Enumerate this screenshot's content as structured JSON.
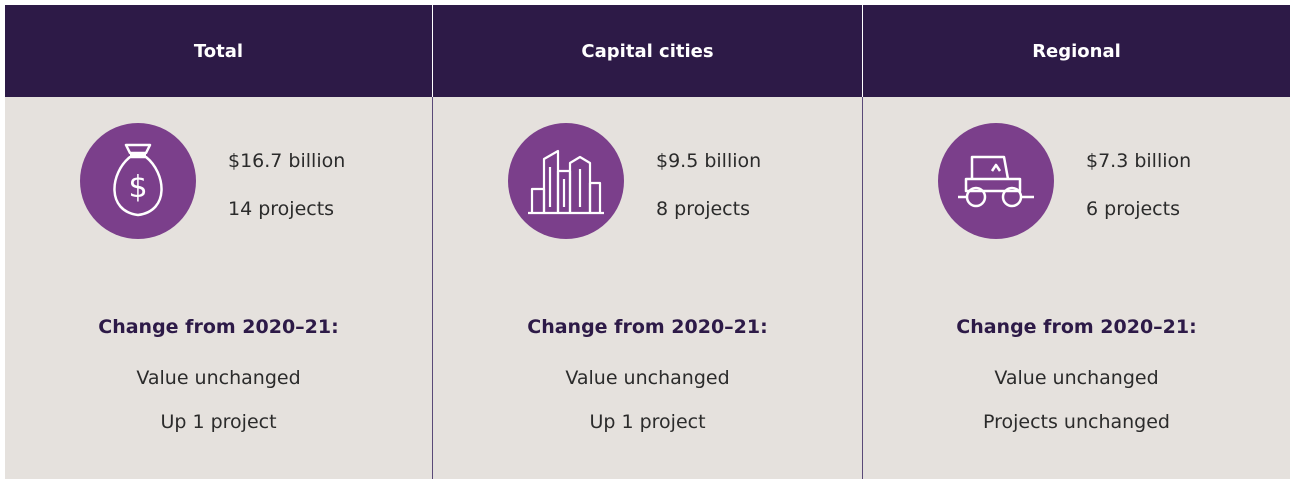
{
  "columns": [
    {
      "header": "Total",
      "value": "$16.7 billion",
      "projects": "14 projects",
      "change_label": "Change from 2020–21:",
      "change_value": "Value unchanged",
      "change_projects": "Up 1 project"
    },
    {
      "header": "Capital cities",
      "value": "$9.5 billion",
      "projects": "8 projects",
      "change_label": "Change from 2020–21:",
      "change_value": "Value unchanged",
      "change_projects": "Up 1 project"
    },
    {
      "header": "Regional",
      "value": "$7.3 billion",
      "projects": "6 projects",
      "change_label": "Change from 2020–21:",
      "change_value": "Value unchanged",
      "change_projects": "Projects unchanged"
    }
  ]
}
